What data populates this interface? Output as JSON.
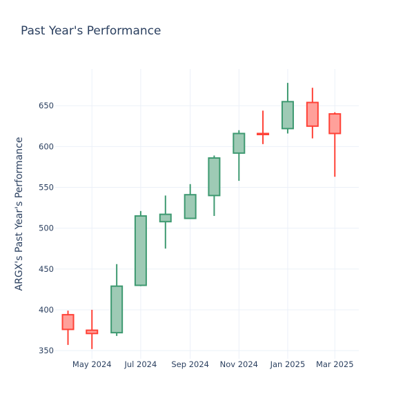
{
  "chart_data": {
    "type": "candlestick",
    "title": "Past Year's Performance",
    "xlabel": "",
    "ylabel": "ARGX's Past Year's Performance",
    "ylim": [
      340,
      695
    ],
    "y_ticks": [
      350,
      400,
      450,
      500,
      550,
      600,
      650
    ],
    "x_range": [
      "2024-03-16",
      "2025-03-31"
    ],
    "x_ticks": [
      {
        "date": "2024-05-01",
        "label": "May 2024"
      },
      {
        "date": "2024-07-01",
        "label": "Jul 2024"
      },
      {
        "date": "2024-09-01",
        "label": "Sep 2024"
      },
      {
        "date": "2024-11-01",
        "label": "Nov 2024"
      },
      {
        "date": "2025-01-01",
        "label": "Jan 2025"
      },
      {
        "date": "2025-03-01",
        "label": "Mar 2025"
      }
    ],
    "candles": [
      {
        "date": "2024-04-01",
        "open": 394,
        "high": 399,
        "low": 357,
        "close": 376
      },
      {
        "date": "2024-05-01",
        "open": 375,
        "high": 400,
        "low": 352,
        "close": 371
      },
      {
        "date": "2024-06-01",
        "open": 372,
        "high": 456,
        "low": 368,
        "close": 429
      },
      {
        "date": "2024-07-01",
        "open": 430,
        "high": 521,
        "low": 429,
        "close": 515
      },
      {
        "date": "2024-08-01",
        "open": 508,
        "high": 540,
        "low": 475,
        "close": 517
      },
      {
        "date": "2024-09-01",
        "open": 512,
        "high": 554,
        "low": 512,
        "close": 541
      },
      {
        "date": "2024-10-01",
        "open": 540,
        "high": 589,
        "low": 515,
        "close": 586
      },
      {
        "date": "2024-11-01",
        "open": 592,
        "high": 620,
        "low": 558,
        "close": 616
      },
      {
        "date": "2024-12-01",
        "open": 616,
        "high": 644,
        "low": 603,
        "close": 615
      },
      {
        "date": "2025-01-01",
        "open": 622,
        "high": 678,
        "low": 616,
        "close": 655
      },
      {
        "date": "2025-02-01",
        "open": 654,
        "high": 672,
        "low": 610,
        "close": 625
      },
      {
        "date": "2025-03-01",
        "open": 640,
        "high": 642,
        "low": 563,
        "close": 616
      }
    ],
    "colors": {
      "increasing_line": "#3d9970",
      "increasing_fill": "#9ecab5",
      "decreasing_line": "#ff4136",
      "decreasing_fill": "#ffa09a"
    },
    "grid": true,
    "legend": false
  }
}
